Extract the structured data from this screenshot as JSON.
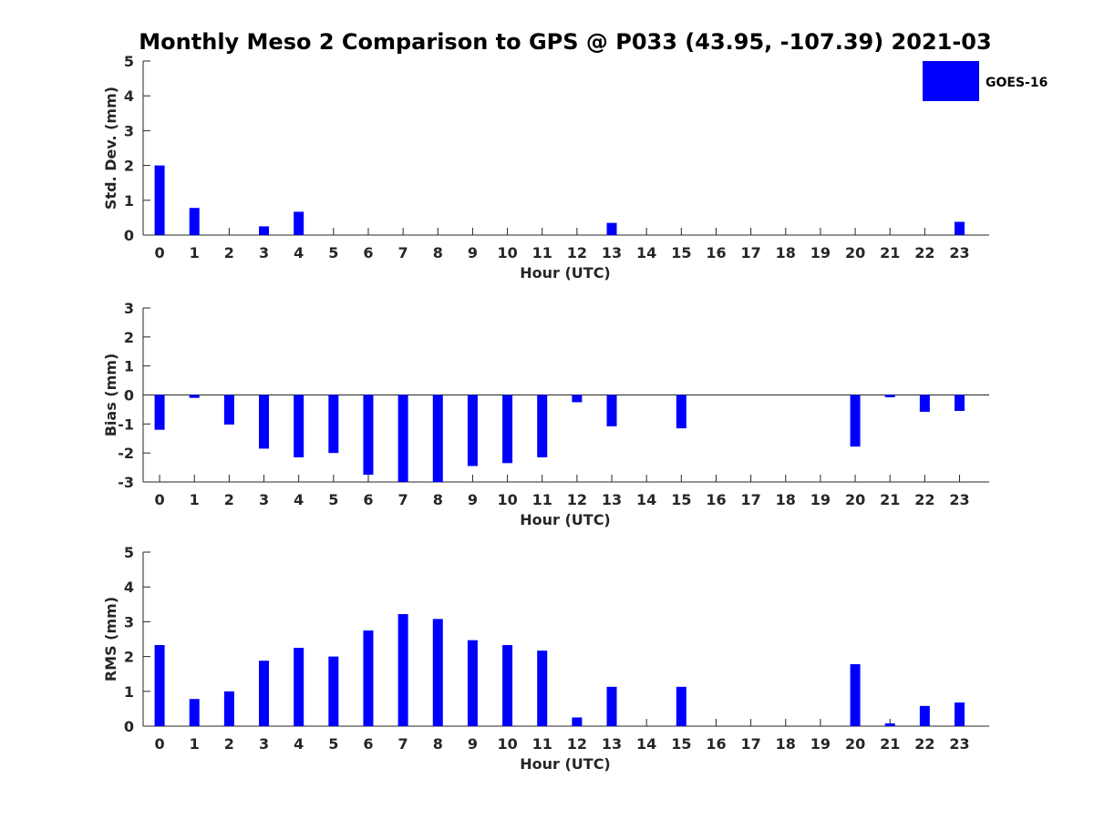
{
  "title": "Monthly Meso 2 Comparison to GPS @ P033 (43.95, -107.39) 2021-03",
  "legend": {
    "label": "GOES-16",
    "color": "#0000ff"
  },
  "chart_data": [
    {
      "type": "bar",
      "xlabel": "Hour (UTC)",
      "ylabel": "Std. Dev. (mm)",
      "ylim": [
        0,
        5
      ],
      "yticks": [
        0,
        1,
        2,
        3,
        4,
        5
      ],
      "categories": [
        "0",
        "1",
        "2",
        "3",
        "4",
        "5",
        "6",
        "7",
        "8",
        "9",
        "10",
        "11",
        "12",
        "13",
        "14",
        "15",
        "16",
        "17",
        "18",
        "19",
        "20",
        "21",
        "22",
        "23"
      ],
      "series": [
        {
          "name": "GOES-16",
          "color": "#0000ff",
          "values": [
            2.0,
            0.78,
            0,
            0.25,
            0.67,
            0,
            0,
            0,
            0,
            0,
            0,
            0,
            0,
            0.35,
            0,
            0,
            0,
            0,
            0,
            0,
            0,
            0,
            0,
            0.38
          ]
        }
      ],
      "legend": "top-right"
    },
    {
      "type": "bar",
      "xlabel": "Hour (UTC)",
      "ylabel": "Bias (mm)",
      "ylim": [
        -3,
        3
      ],
      "yticks": [
        -3,
        -2,
        -1,
        0,
        1,
        2,
        3
      ],
      "categories": [
        "0",
        "1",
        "2",
        "3",
        "4",
        "5",
        "6",
        "7",
        "8",
        "9",
        "10",
        "11",
        "12",
        "13",
        "14",
        "15",
        "16",
        "17",
        "18",
        "19",
        "20",
        "21",
        "22",
        "23"
      ],
      "series": [
        {
          "name": "GOES-16",
          "color": "#0000ff",
          "values": [
            -1.2,
            -0.1,
            -1.02,
            -1.85,
            -2.15,
            -2.0,
            -2.75,
            -3.0,
            -3.0,
            -2.45,
            -2.35,
            -2.15,
            -0.25,
            -1.08,
            0,
            -1.15,
            0,
            0,
            0,
            0,
            -1.78,
            -0.08,
            -0.58,
            -0.55
          ]
        }
      ]
    },
    {
      "type": "bar",
      "xlabel": "Hour (UTC)",
      "ylabel": "RMS (mm)",
      "ylim": [
        0,
        5
      ],
      "yticks": [
        0,
        1,
        2,
        3,
        4,
        5
      ],
      "categories": [
        "0",
        "1",
        "2",
        "3",
        "4",
        "5",
        "6",
        "7",
        "8",
        "9",
        "10",
        "11",
        "12",
        "13",
        "14",
        "15",
        "16",
        "17",
        "18",
        "19",
        "20",
        "21",
        "22",
        "23"
      ],
      "series": [
        {
          "name": "GOES-16",
          "color": "#0000ff",
          "values": [
            2.33,
            0.78,
            1.0,
            1.88,
            2.25,
            2.0,
            2.75,
            3.22,
            3.08,
            2.47,
            2.33,
            2.17,
            0.25,
            1.13,
            0,
            1.13,
            0,
            0,
            0,
            0,
            1.78,
            0.08,
            0.58,
            0.68
          ]
        }
      ]
    }
  ]
}
